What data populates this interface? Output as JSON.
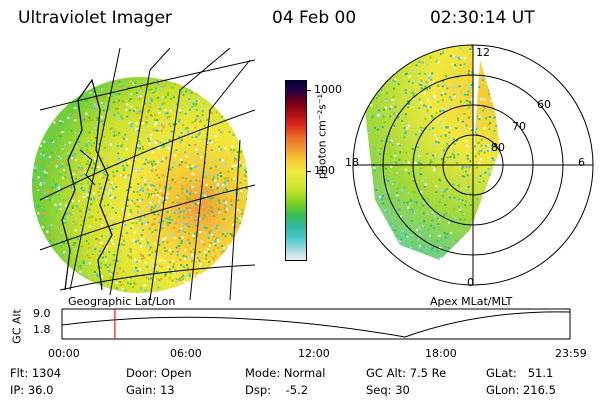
{
  "header": {
    "title": "Ultraviolet Imager",
    "date": "04 Feb 00",
    "time": "02:30:14 UT"
  },
  "colorbar": {
    "unit_label": "photon cm⁻²s⁻¹",
    "tick_labels": [
      "1000",
      "100"
    ],
    "ticks": [
      1000,
      100
    ],
    "range": [
      8,
      1300
    ],
    "scale": "log"
  },
  "colors": {
    "scale": [
      "#e6eef2",
      "#9ed8df",
      "#46c8c8",
      "#31b8a3",
      "#38bf57",
      "#74d020",
      "#b9e02a",
      "#dde83b",
      "#f2e83d",
      "#f4c636",
      "#f09a33",
      "#ea6a2b",
      "#dc2b1a",
      "#b0101a",
      "#7a0012",
      "#300040",
      "#000040"
    ],
    "time_marker": "#e01818"
  },
  "panels": {
    "left_label": "Geographic Lat/Lon",
    "right_label": "Apex MLat/MLT"
  },
  "polar": {
    "mlt_labels": [
      "12",
      "18",
      "6",
      "0"
    ],
    "lat_labels": [
      "60",
      "70",
      "80"
    ]
  },
  "gc_alt_plot": {
    "axis_label": "GC Alt",
    "y_labels": [
      "9.0",
      "1.8"
    ],
    "x_labels": [
      "00:00",
      "06:00",
      "12:00",
      "18:00",
      "23:59"
    ],
    "marker_time": "02:30"
  },
  "info": {
    "flt": "Flt: 1304",
    "ip": "IP: 36.0",
    "door": "Door: Open",
    "gain": "Gain: 13",
    "mode": "Mode: Normal",
    "dsp": "Dsp:    -5.2",
    "gc_alt": "GC Alt: 7.5 Re",
    "seq": "Seq: 30",
    "glat": "GLat:   51.1",
    "glon": "GLon: 216.5"
  }
}
